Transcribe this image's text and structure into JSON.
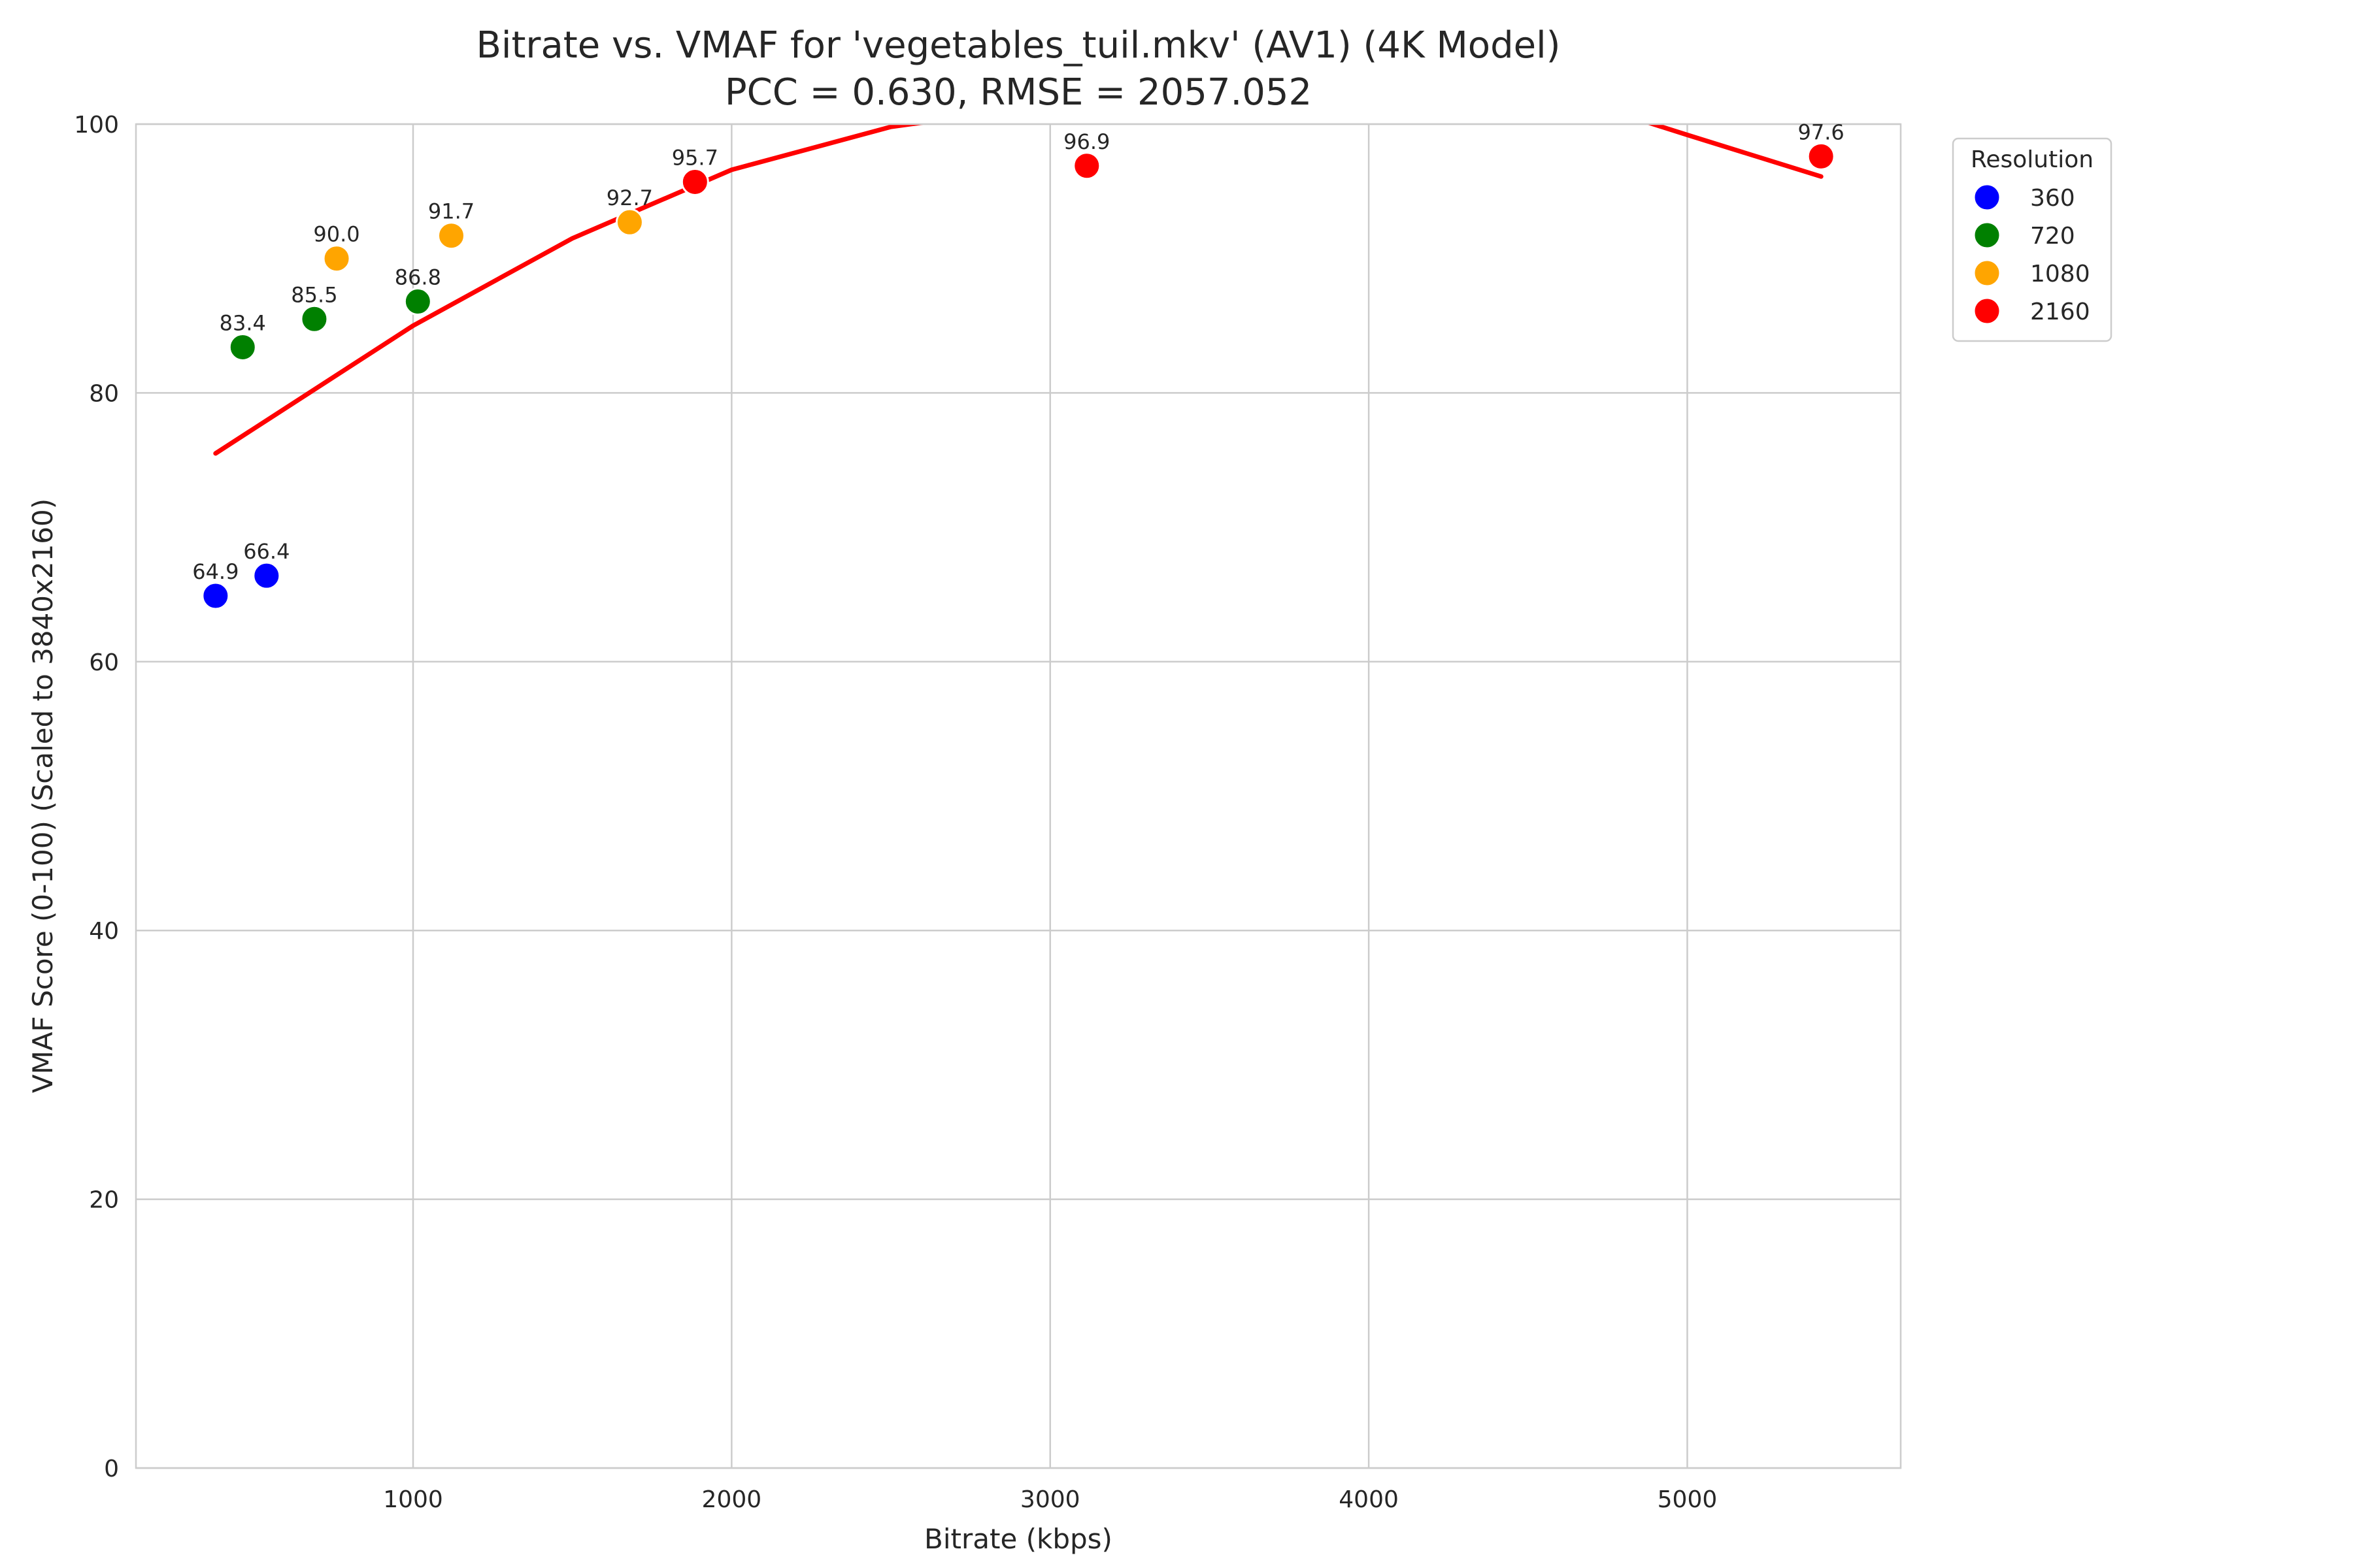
{
  "chart_data": {
    "type": "scatter",
    "title": "Bitrate vs. VMAF for 'vegetables_tuil.mkv' (AV1) (4K Model)",
    "subtitle": "PCC = 0.630, RMSE = 2057.052",
    "xlabel": "Bitrate (kbps)",
    "ylabel": "VMAF Score (0-100) (Scaled to 3840x2160)",
    "xlim": [
      130,
      5670
    ],
    "ylim": [
      0,
      100
    ],
    "xticks": [
      1000,
      2000,
      3000,
      4000,
      5000
    ],
    "yticks": [
      0,
      20,
      40,
      60,
      80,
      100
    ],
    "grid": true,
    "legend": {
      "title": "Resolution",
      "placement": "outside-right-top"
    },
    "series": [
      {
        "name": "360",
        "color": "#0000ff",
        "points": [
          {
            "x": 380,
            "y": 64.9,
            "label": "64.9"
          },
          {
            "x": 540,
            "y": 66.4,
            "label": "66.4"
          }
        ]
      },
      {
        "name": "720",
        "color": "#008000",
        "points": [
          {
            "x": 465,
            "y": 83.4,
            "label": "83.4"
          },
          {
            "x": 690,
            "y": 85.5,
            "label": "85.5"
          },
          {
            "x": 1015,
            "y": 86.8,
            "label": "86.8"
          }
        ]
      },
      {
        "name": "1080",
        "color": "#ffa500",
        "points": [
          {
            "x": 760,
            "y": 90.0,
            "label": "90.0"
          },
          {
            "x": 1120,
            "y": 91.7,
            "label": "91.7"
          },
          {
            "x": 1680,
            "y": 92.7,
            "label": "92.7"
          }
        ]
      },
      {
        "name": "2160",
        "color": "#ff0000",
        "points": [
          {
            "x": 1885,
            "y": 95.7,
            "label": "95.7"
          },
          {
            "x": 3115,
            "y": 96.9,
            "label": "96.9"
          },
          {
            "x": 5420,
            "y": 97.6,
            "label": "97.6"
          }
        ]
      }
    ],
    "fit_curve": {
      "color": "#ff0000",
      "points": [
        {
          "x": 380,
          "y": 75.5
        },
        {
          "x": 1000,
          "y": 85.0
        },
        {
          "x": 1500,
          "y": 91.5
        },
        {
          "x": 2000,
          "y": 96.6
        },
        {
          "x": 2500,
          "y": 99.8
        },
        {
          "x": 2750,
          "y": 100.6
        },
        {
          "x": 3000,
          "y": 101.5
        },
        {
          "x": 3500,
          "y": 102.6
        },
        {
          "x": 4000,
          "y": 102.9
        },
        {
          "x": 4500,
          "y": 102.3
        },
        {
          "x": 4800,
          "y": 100.7
        },
        {
          "x": 5000,
          "y": 99.2
        },
        {
          "x": 5420,
          "y": 96.1
        }
      ]
    }
  }
}
